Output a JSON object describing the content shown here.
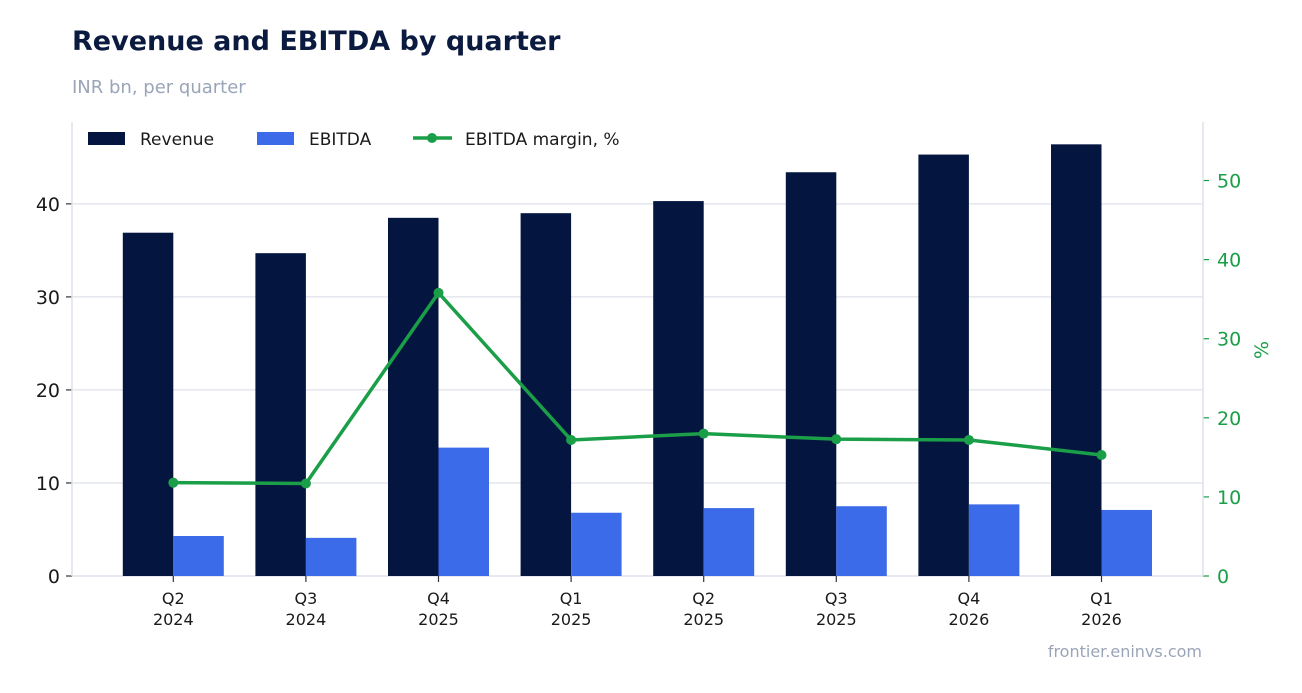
{
  "header": {
    "title": "Revenue and EBITDA by quarter",
    "subtitle": "INR bn, per quarter"
  },
  "footer": {
    "source": "frontier.eninvs.com"
  },
  "colors": {
    "revenue": "#04163f",
    "ebitda": "#3b6be8",
    "margin": "#1a9e47",
    "grid": "#e3e7ee"
  },
  "chart_data": {
    "type": "bar",
    "categories": [
      [
        "Q2",
        "2024"
      ],
      [
        "Q3",
        "2024"
      ],
      [
        "Q4",
        "2025"
      ],
      [
        "Q1",
        "2025"
      ],
      [
        "Q2",
        "2025"
      ],
      [
        "Q3",
        "2025"
      ],
      [
        "Q4",
        "2026"
      ],
      [
        "Q1",
        "2026"
      ]
    ],
    "series": [
      {
        "name": "Revenue",
        "type": "bar",
        "axis": "left",
        "values": [
          36.9,
          34.7,
          38.5,
          39.0,
          40.3,
          43.4,
          45.3,
          46.4
        ]
      },
      {
        "name": "EBITDA",
        "type": "bar",
        "axis": "left",
        "values": [
          4.3,
          4.1,
          13.8,
          6.8,
          7.3,
          7.5,
          7.7,
          7.1
        ]
      },
      {
        "name": "EBITDA margin, %",
        "type": "line",
        "axis": "right",
        "values": [
          11.8,
          11.7,
          35.8,
          17.2,
          18.0,
          17.3,
          17.2,
          15.3
        ]
      }
    ],
    "y_left": {
      "min": 0,
      "max": 48.8,
      "ticks": [
        0,
        10,
        20,
        30,
        40
      ],
      "label": ""
    },
    "y_right": {
      "min": 0,
      "max": 57.4,
      "ticks": [
        0,
        10,
        20,
        30,
        40,
        50
      ],
      "label": "%"
    },
    "grid": true,
    "legend": "top-left"
  }
}
